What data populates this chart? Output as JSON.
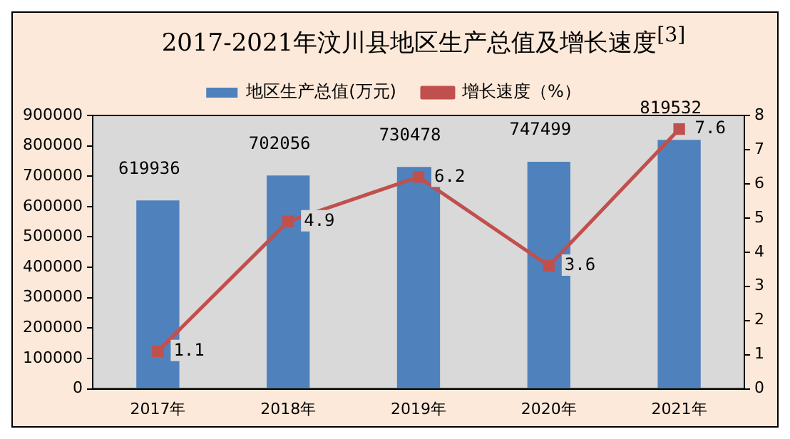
{
  "chart_data": {
    "type": "bar",
    "title": "2017-2021年汶川县地区生产总值及增长速度$^{[3]}$",
    "categories": [
      "2017年",
      "2018年",
      "2019年",
      "2020年",
      "2021年"
    ],
    "series": [
      {
        "name": "地区生产总值(万元)",
        "color": "#4f81bd",
        "values": [
          619936,
          702056,
          730478,
          747499,
          819532
        ]
      },
      {
        "name": "增长速度（%）",
        "type": "line",
        "axis": "y2",
        "color": "#c0504d",
        "marker": "square",
        "values": [
          1.1,
          4.9,
          6.2,
          3.6,
          7.6
        ]
      }
    ],
    "ylim": [
      0,
      900000
    ],
    "yticks": [
      0,
      100000,
      200000,
      300000,
      400000,
      500000,
      600000,
      700000,
      800000,
      900000
    ],
    "y2lim": [
      0,
      8
    ],
    "y2ticks": [
      0,
      1,
      2,
      3,
      4,
      5,
      6,
      7,
      8
    ],
    "data_labels": true,
    "grid": false,
    "legend": "top"
  }
}
